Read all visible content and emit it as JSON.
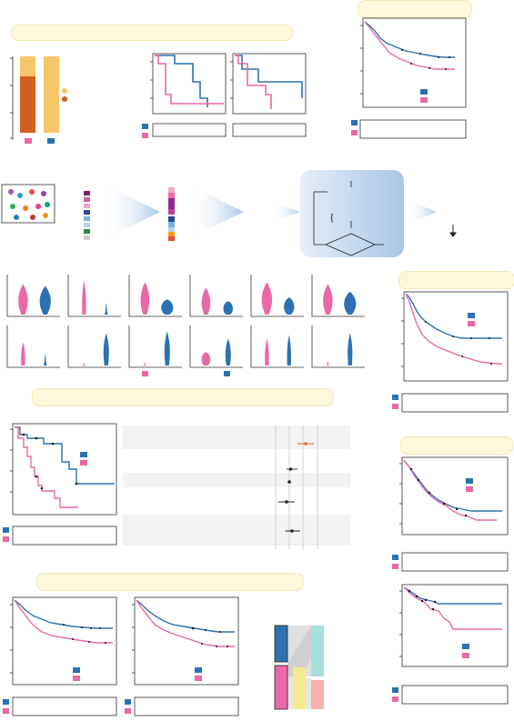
{
  "colors": {
    "blue": "#2c72b0",
    "pink": "#e968a8",
    "orange_dark": "#d35f1e",
    "orange_light": "#f8c66a",
    "censor": "#1a1a1a",
    "banner_bg": "#fdf8dc",
    "arrow_blue": "#a8c6e6",
    "forest_orange": "#e0622a"
  },
  "chart_data": [
    {
      "type": "bar",
      "categories": [
        "group-pink",
        "group-blue"
      ],
      "series": [
        {
          "values": [
            0.8,
            0.0
          ]
        },
        {
          "values": [
            0.2,
            1.0
          ]
        }
      ],
      "ylim": [
        0,
        1
      ]
    },
    {
      "type": "line",
      "series": [
        {
          "values": [
            1.0,
            0.9,
            0.75,
            0.55
          ]
        },
        {
          "values": [
            1.0,
            0.8,
            0.3,
            0.1
          ]
        }
      ]
    },
    {
      "type": "line",
      "series": [
        {
          "values": [
            1.0,
            0.95,
            0.7,
            0.45
          ]
        },
        {
          "values": [
            1.0,
            0.85,
            0.5,
            0.05
          ]
        }
      ]
    },
    {
      "type": "line",
      "series": [
        {
          "values": [
            1.0,
            0.8,
            0.62,
            0.48,
            0.44
          ]
        },
        {
          "values": [
            1.0,
            0.72,
            0.5,
            0.38,
            0.34
          ]
        }
      ]
    },
    {
      "type": "line",
      "series": [
        {
          "values": [
            1.0,
            0.72,
            0.6,
            0.55,
            0.55
          ]
        },
        {
          "values": [
            1.0,
            0.55,
            0.38,
            0.25,
            0.2
          ]
        }
      ]
    },
    {
      "type": "line",
      "series": [
        {
          "values": [
            1.0,
            0.68,
            0.45,
            0.37,
            0.2
          ]
        },
        {
          "values": [
            1.0,
            0.62,
            0.42,
            0.28,
            0.13
          ]
        }
      ]
    },
    {
      "type": "line",
      "series": [
        {
          "values": [
            1.0,
            0.72,
            0.65,
            0.55,
            0.52
          ]
        },
        {
          "values": [
            1.0,
            0.62,
            0.48,
            0.4,
            0.38
          ]
        }
      ]
    },
    {
      "type": "line",
      "series": [
        {
          "values": [
            1.0,
            0.9,
            0.68,
            0.48,
            0.48
          ]
        },
        {
          "values": [
            1.0,
            0.65,
            0.38,
            0.28,
            0.2
          ]
        }
      ]
    },
    {
      "type": "line",
      "series": [
        {
          "values": [
            1.0,
            0.85,
            0.72,
            0.66,
            0.64
          ]
        },
        {
          "values": [
            1.0,
            0.78,
            0.63,
            0.58,
            0.56
          ]
        }
      ]
    },
    {
      "type": "line",
      "series": [
        {
          "values": [
            1.0,
            0.86,
            0.74,
            0.67,
            0.64
          ]
        },
        {
          "values": [
            1.0,
            0.8,
            0.63,
            0.56,
            0.54
          ]
        }
      ]
    },
    {
      "type": "scatter",
      "values": [
        1.6,
        1.05,
        1.0,
        0.9,
        1.1
      ],
      "ci_low": [
        1.3,
        0.9,
        0.95,
        0.6,
        0.85
      ],
      "ci_high": [
        1.9,
        1.3,
        1.05,
        1.2,
        1.4
      ]
    }
  ]
}
